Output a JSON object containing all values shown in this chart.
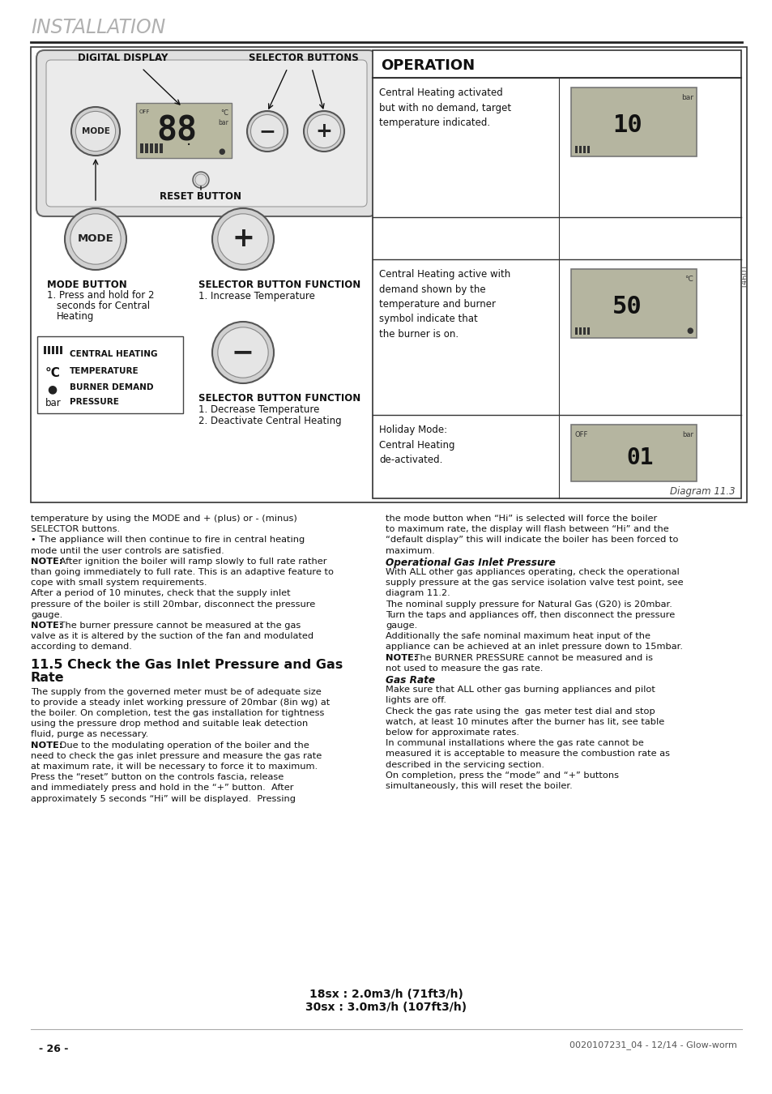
{
  "title": "INSTALLATION",
  "page_number": "- 26 -",
  "footer_text": "0020107231_04 - 12/14 - Glow-worm",
  "diagram_label": "Diagram 11.3",
  "section_title": "11.5 Check the Gas Inlet Pressure and Gas Rate",
  "bg_color": "#ffffff",
  "title_color": "#b0b0b0",
  "body_color": "#1a1a1a",
  "operation_header": "OPERATION",
  "left_col_para1": "temperature by using the MODE and + (plus) or - (minus)\nSELECTOR buttons.\n• The appliance will then continue to fire in central heating\nmode until the user controls are satisfied.\nNOTE: After ignition the boiler will ramp slowly to full rate rather\nthan going immediately to full rate. This is an adaptive feature to\ncope with small system requirements.\nAfter a period of 10 minutes, check that the supply inlet\npressure of the boiler is still 20mbar, disconnect the pressure\ngauge.\nNOTE: The burner pressure cannot be measured at the gas\nvalve as it is altered by the suction of the fan and modulated\naccording to demand.",
  "left_col_para2": "The supply from the governed meter must be of adequate size\nto provide a steady inlet working pressure of 20mbar (8in wg) at\nthe boiler. On completion, test the gas installation for tightness\nusing the pressure drop method and suitable leak detection\nfluid, purge as necessary.\nNOTE: Due to the modulating operation of the boiler and the\nneed to check the gas inlet pressure and measure the gas rate\nat maximum rate, it will be necessary to force it to maximum.\nPress the “reset” button on the controls fascia, release\nand immediately press and hold in the “+” button.  After\napproximately 5 seconds “Hi” will be displayed.  Pressing",
  "right_col_text_lines": [
    {
      "text": "the mode button when “Hi” is selected will force the boiler",
      "style": "normal"
    },
    {
      "text": "to maximum rate, the display will flash between “Hi” and the",
      "style": "normal"
    },
    {
      "text": "“default display” this will indicate the boiler has been forced to",
      "style": "normal"
    },
    {
      "text": "maximum.",
      "style": "normal"
    },
    {
      "text": "Operational Gas Inlet Pressure",
      "style": "italic_bold"
    },
    {
      "text": "With ALL other gas appliances operating, check the operational",
      "style": "normal"
    },
    {
      "text": "supply pressure at the gas service isolation valve test point, see",
      "style": "normal"
    },
    {
      "text": "diagram 11.2.",
      "style": "normal"
    },
    {
      "text": "The nominal supply pressure for Natural Gas (G20) is 20mbar.",
      "style": "normal"
    },
    {
      "text": "Turn the taps and appliances off, then disconnect the pressure",
      "style": "normal"
    },
    {
      "text": "gauge.",
      "style": "normal"
    },
    {
      "text": "Additionally the safe nominal maximum heat input of the",
      "style": "normal"
    },
    {
      "text": "appliance can be achieved at an inlet pressure down to 15mbar.",
      "style": "normal"
    },
    {
      "text": "NOTE: The BURNER PRESSURE cannot be measured and is",
      "style": "note_bold"
    },
    {
      "text": "not used to measure the gas rate.",
      "style": "normal"
    },
    {
      "text": "Gas Rate",
      "style": "italic_bold"
    },
    {
      "text": "Make sure that ALL other gas burning appliances and pilot",
      "style": "normal"
    },
    {
      "text": "lights are off.",
      "style": "normal"
    },
    {
      "text": "Check the gas rate using the  gas meter test dial and stop",
      "style": "normal"
    },
    {
      "text": "watch, at least 10 minutes after the burner has lit, see table",
      "style": "normal"
    },
    {
      "text": "below for approximate rates.",
      "style": "normal"
    },
    {
      "text": "In communal installations where the gas rate cannot be",
      "style": "normal"
    },
    {
      "text": "measured it is acceptable to measure the combustion rate as",
      "style": "normal"
    },
    {
      "text": "described in the servicing section.",
      "style": "normal"
    },
    {
      "text": "On completion, press the “mode” and “+” buttons",
      "style": "normal"
    },
    {
      "text": "simultaneously, this will reset the boiler.",
      "style": "normal"
    }
  ],
  "bottom_note_line1": "18sx : 2.0m3/h (71ft3/h)",
  "bottom_note_line2": "30sx : 3.0m3/h (107ft3/h)"
}
